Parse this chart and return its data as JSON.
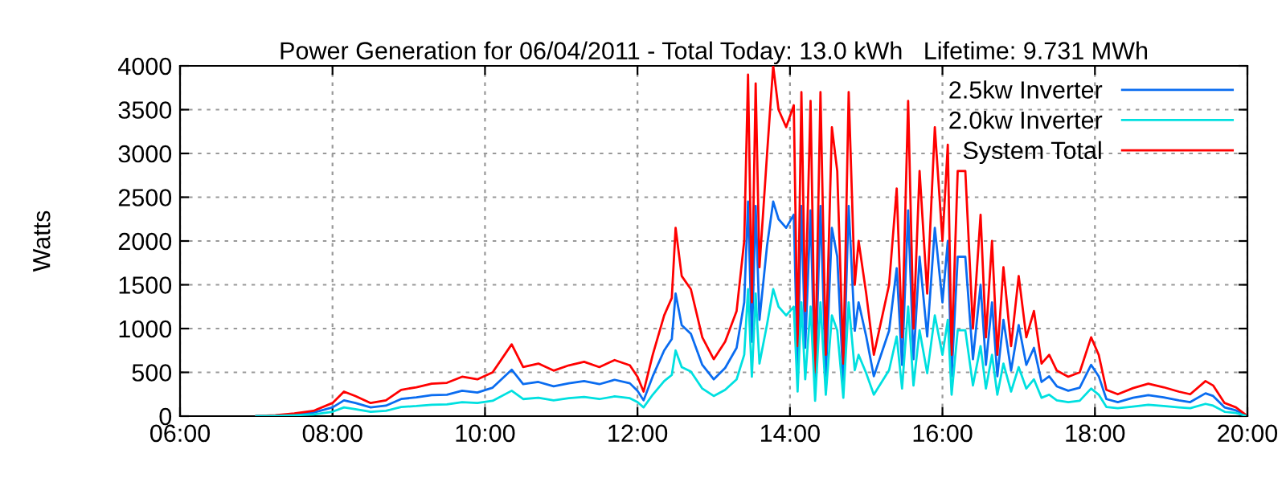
{
  "chart_data": {
    "type": "line",
    "title": "Power Generation for 06/04/2011 - Total Today: 13.0 kWh   Lifetime: 9.731 MWh",
    "ylabel": "Watts",
    "x": [
      7.0,
      7.25,
      7.5,
      7.75,
      8.0,
      8.15,
      8.3,
      8.5,
      8.7,
      8.9,
      9.1,
      9.3,
      9.5,
      9.7,
      9.9,
      10.1,
      10.35,
      10.5,
      10.7,
      10.9,
      11.1,
      11.3,
      11.5,
      11.7,
      11.9,
      12.0,
      12.08,
      12.2,
      12.35,
      12.45,
      12.5,
      12.58,
      12.7,
      12.85,
      13.0,
      13.15,
      13.3,
      13.4,
      13.45,
      13.5,
      13.55,
      13.6,
      13.7,
      13.78,
      13.85,
      13.95,
      14.05,
      14.1,
      14.15,
      14.2,
      14.27,
      14.33,
      14.4,
      14.47,
      14.55,
      14.62,
      14.7,
      14.77,
      14.85,
      14.9,
      15.0,
      15.1,
      15.2,
      15.3,
      15.4,
      15.47,
      15.55,
      15.62,
      15.7,
      15.8,
      15.9,
      16.0,
      16.07,
      16.12,
      16.2,
      16.3,
      16.4,
      16.5,
      16.57,
      16.65,
      16.72,
      16.8,
      16.9,
      17.0,
      17.1,
      17.2,
      17.3,
      17.4,
      17.5,
      17.65,
      17.8,
      17.95,
      18.05,
      18.15,
      18.3,
      18.5,
      18.7,
      18.9,
      19.1,
      19.25,
      19.45,
      19.55,
      19.7,
      19.85,
      19.97
    ],
    "series": [
      {
        "name": "2.5kw Inverter",
        "color": "#0a6cf0",
        "values": [
          0,
          6,
          20,
          40,
          100,
          180,
          150,
          100,
          120,
          195,
          215,
          240,
          245,
          290,
          270,
          325,
          530,
          365,
          390,
          340,
          375,
          400,
          365,
          415,
          375,
          290,
          180,
          455,
          750,
          880,
          1400,
          1040,
          940,
          585,
          420,
          550,
          780,
          1300,
          2450,
          850,
          2400,
          1100,
          1950,
          2450,
          2250,
          2150,
          2300,
          520,
          2400,
          780,
          2350,
          325,
          2400,
          455,
          2150,
          1820,
          390,
          2400,
          975,
          1300,
          910,
          455,
          715,
          975,
          1690,
          585,
          2350,
          650,
          1820,
          910,
          2150,
          1300,
          2000,
          455,
          1820,
          1820,
          650,
          1500,
          585,
          1300,
          455,
          1100,
          520,
          1040,
          585,
          780,
          390,
          455,
          340,
          290,
          325,
          585,
          455,
          195,
          160,
          210,
          240,
          215,
          180,
          160,
          260,
          230,
          100,
          65,
          13
        ]
      },
      {
        "name": "2.0kw Inverter",
        "color": "#00e0e0",
        "values": [
          0,
          4,
          10,
          20,
          50,
          100,
          80,
          50,
          60,
          105,
          115,
          130,
          135,
          160,
          150,
          175,
          290,
          195,
          210,
          180,
          205,
          220,
          195,
          225,
          205,
          160,
          100,
          245,
          400,
          470,
          750,
          560,
          510,
          315,
          230,
          300,
          420,
          700,
          1450,
          450,
          1400,
          600,
          1050,
          1450,
          1250,
          1150,
          1250,
          280,
          1300,
          420,
          1250,
          175,
          1300,
          245,
          1150,
          980,
          210,
          1300,
          525,
          700,
          490,
          245,
          385,
          525,
          910,
          315,
          1250,
          350,
          980,
          490,
          1150,
          700,
          1100,
          245,
          980,
          980,
          350,
          800,
          315,
          700,
          245,
          600,
          280,
          560,
          315,
          420,
          210,
          245,
          180,
          160,
          175,
          315,
          245,
          105,
          90,
          110,
          130,
          115,
          100,
          90,
          140,
          120,
          50,
          35,
          7
        ]
      },
      {
        "name": "System Total",
        "color": "#ff0000",
        "values": [
          0,
          10,
          30,
          60,
          150,
          280,
          230,
          150,
          180,
          300,
          330,
          370,
          380,
          450,
          420,
          500,
          820,
          560,
          600,
          520,
          580,
          620,
          560,
          640,
          580,
          450,
          280,
          700,
          1150,
          1350,
          2150,
          1600,
          1450,
          900,
          650,
          850,
          1200,
          2000,
          3900,
          1300,
          3800,
          1700,
          3000,
          4000,
          3500,
          3300,
          3550,
          800,
          3700,
          1200,
          3600,
          500,
          3700,
          700,
          3300,
          2800,
          600,
          3700,
          1500,
          2000,
          1400,
          700,
          1100,
          1500,
          2600,
          900,
          3600,
          1000,
          2800,
          1400,
          3300,
          2000,
          3100,
          700,
          2800,
          2800,
          1000,
          2300,
          900,
          2000,
          700,
          1700,
          800,
          1600,
          900,
          1200,
          600,
          700,
          520,
          450,
          500,
          900,
          700,
          300,
          250,
          320,
          370,
          330,
          280,
          250,
          400,
          350,
          150,
          100,
          20
        ]
      }
    ],
    "xlim": [
      6,
      20
    ],
    "xticks": [
      {
        "value": 6,
        "label": "06:00"
      },
      {
        "value": 8,
        "label": "08:00"
      },
      {
        "value": 10,
        "label": "10:00"
      },
      {
        "value": 12,
        "label": "12:00"
      },
      {
        "value": 14,
        "label": "14:00"
      },
      {
        "value": 16,
        "label": "16:00"
      },
      {
        "value": 18,
        "label": "18:00"
      },
      {
        "value": 20,
        "label": "20:00"
      }
    ],
    "ylim": [
      0,
      4000
    ],
    "yticks": [
      0,
      500,
      1000,
      1500,
      2000,
      2500,
      3000,
      3500,
      4000
    ],
    "grid": true,
    "legend": "top right",
    "line_style": "solid",
    "marker": "none"
  }
}
